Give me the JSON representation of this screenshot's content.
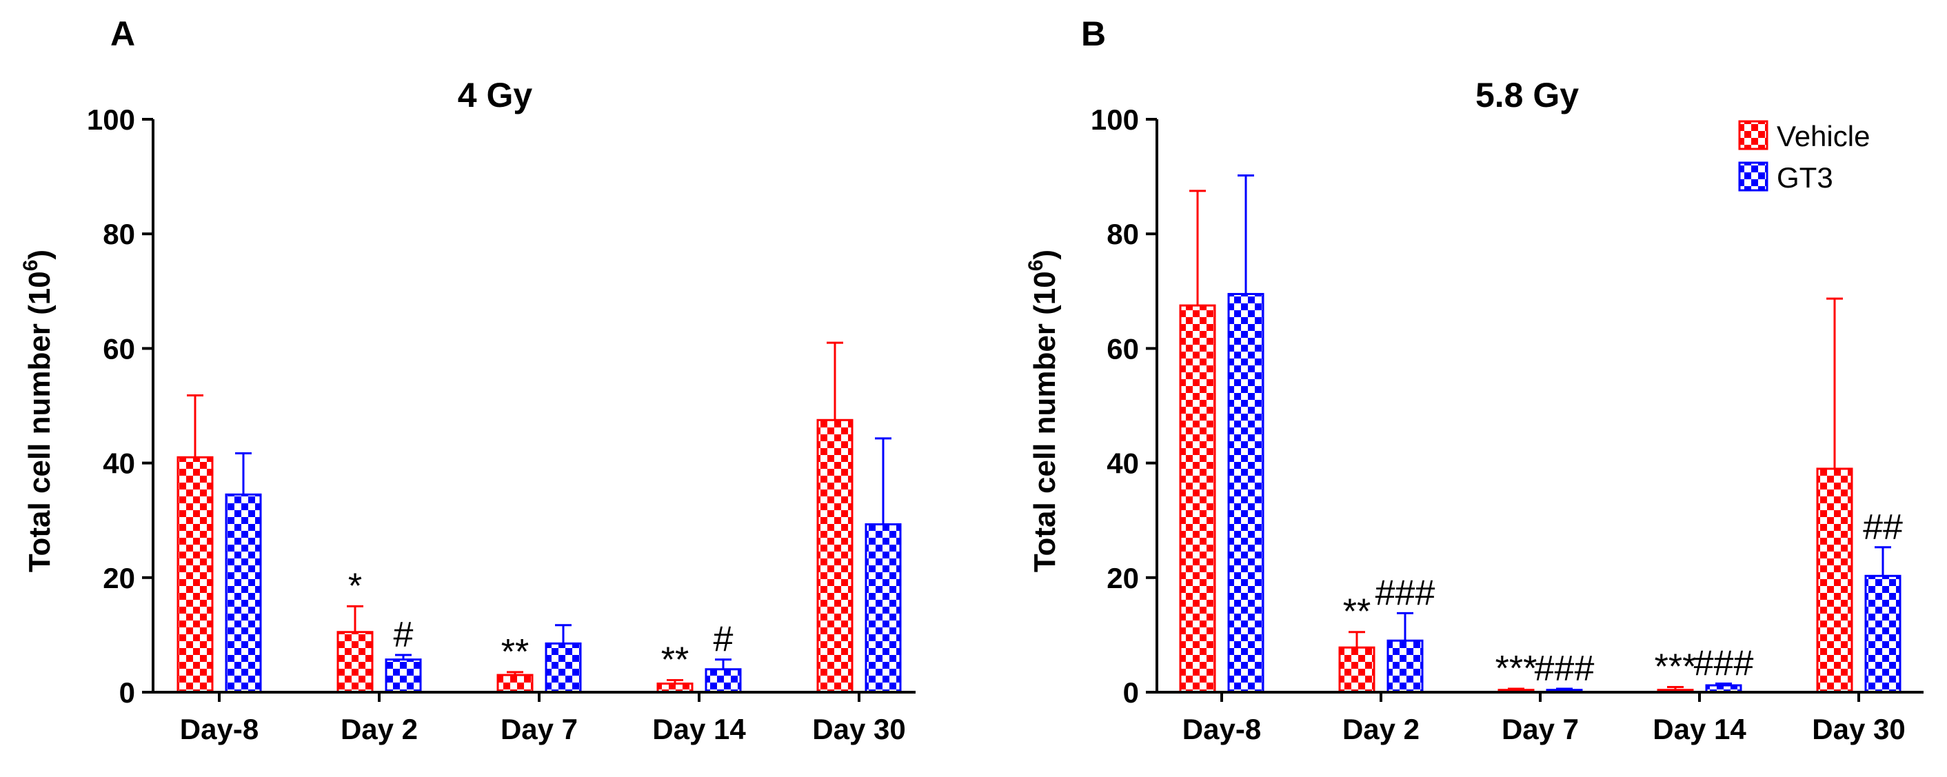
{
  "colors": {
    "vehicle": "#ff0000",
    "gt3": "#0000ff",
    "axis": "#000000"
  },
  "chart_data": [
    {
      "type": "bar",
      "panel": "A",
      "title": "4 Gy",
      "ylabel": "Total cell number (10",
      "ylabel_sup": "6",
      "ylabel_close": ")",
      "xlabel": "",
      "ylim": [
        0,
        100
      ],
      "yticks": [
        "0",
        "20",
        "40",
        "60",
        "80",
        "100"
      ],
      "categories": [
        "Day-8",
        "Day 2",
        "Day 7",
        "Day 14",
        "Day 30"
      ],
      "series": [
        {
          "name": "Vehicle",
          "values": [
            41,
            10.5,
            3,
            1.5,
            47.5
          ],
          "errors": [
            10.8,
            4.5,
            0.5,
            0.6,
            13.5
          ],
          "annotations": [
            "",
            "*",
            "**",
            "**",
            ""
          ]
        },
        {
          "name": "GT3",
          "values": [
            34.5,
            5.7,
            8.5,
            4,
            29.3
          ],
          "errors": [
            7.2,
            0.8,
            3.2,
            1.7,
            15
          ],
          "annotations": [
            "",
            "#",
            "",
            "#",
            ""
          ]
        }
      ],
      "legend": false
    },
    {
      "type": "bar",
      "panel": "B",
      "title": "5.8 Gy",
      "ylabel": "Total cell number (10",
      "ylabel_sup": "6",
      "ylabel_close": ")",
      "xlabel": "",
      "ylim": [
        0,
        100
      ],
      "yticks": [
        "0",
        "20",
        "40",
        "60",
        "80",
        "100"
      ],
      "categories": [
        "Day-8",
        "Day 2",
        "Day 7",
        "Day 14",
        "Day 30"
      ],
      "series": [
        {
          "name": "Vehicle",
          "values": [
            67.5,
            7.8,
            0.4,
            0.4,
            39
          ],
          "errors": [
            20,
            2.7,
            0.2,
            0.5,
            29.7
          ],
          "annotations": [
            "",
            "**",
            "***",
            "***",
            ""
          ]
        },
        {
          "name": "GT3",
          "values": [
            69.5,
            9,
            0.4,
            1.2,
            20.3
          ],
          "errors": [
            20.7,
            4.8,
            0.2,
            0.3,
            5
          ],
          "annotations": [
            "",
            "###",
            "###",
            "###",
            "##"
          ]
        }
      ],
      "legend": true,
      "legend_position": "top-right"
    }
  ]
}
